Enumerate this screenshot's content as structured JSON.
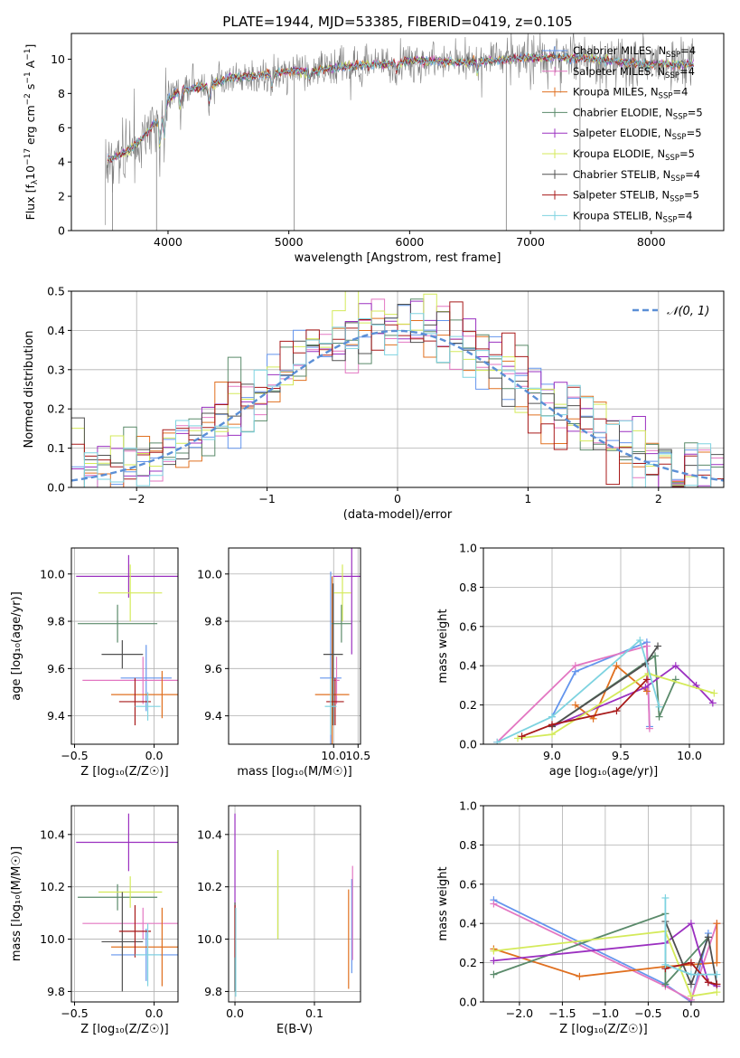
{
  "figure_title": "PLATE=1944, MJD=53385, FIBERID=0419, z=0.105",
  "colors": {
    "Chabrier MILES": "#6495ed",
    "Salpeter MILES": "#e377c2",
    "Kroupa MILES": "#e07020",
    "Chabrier ELODIE": "#5a8a6a",
    "Salpeter ELODIE": "#9b30c0",
    "Kroupa ELODIE": "#d4ea5a",
    "Chabrier STELIB": "#505050",
    "Salpeter STELIB": "#a81a1a",
    "Kroupa STELIB": "#7ed3e0",
    "data": "#7f7f7f",
    "normal": "#5b8fd6"
  },
  "chart_data": [
    {
      "id": "spectrum",
      "type": "line",
      "title": "PLATE=1944, MJD=53385, FIBERID=0419, z=0.105",
      "xlabel": "wavelength [Angstrom, rest frame]",
      "ylabel_main": "Flux [f",
      "ylabel_sub": "λ",
      "ylabel_rest": "10",
      "ylabel_exp": "−17",
      "ylabel_tail": " erg cm",
      "ylabel_exp2": "−2",
      "ylabel_tail2": " s",
      "ylabel_exp3": "−1",
      "ylabel_tail3": " A",
      "ylabel_exp4": "−1",
      "ylabel_end": "]",
      "xlim": [
        3200,
        8600
      ],
      "ylim": [
        0,
        11.5
      ],
      "xticks": [
        4000,
        5000,
        6000,
        7000,
        8000
      ],
      "yticks": [
        0,
        2,
        4,
        6,
        8,
        10
      ],
      "grid": false,
      "legend_position": "right",
      "legend": [
        {
          "name": "Chabrier MILES",
          "nssp": "4"
        },
        {
          "name": "Salpeter MILES",
          "nssp": "4"
        },
        {
          "name": "Kroupa MILES",
          "nssp": "4"
        },
        {
          "name": "Chabrier ELODIE",
          "nssp": "5"
        },
        {
          "name": "Salpeter ELODIE",
          "nssp": "5"
        },
        {
          "name": "Kroupa ELODIE",
          "nssp": "5"
        },
        {
          "name": "Chabrier STELIB",
          "nssp": "4"
        },
        {
          "name": "Salpeter STELIB",
          "nssp": "5"
        },
        {
          "name": "Kroupa STELIB",
          "nssp": "4"
        }
      ],
      "nssp_label": "N",
      "nssp_sub": "SSP",
      "continuum": [
        [
          3480,
          4.0
        ],
        [
          3600,
          4.4
        ],
        [
          3700,
          4.8
        ],
        [
          3800,
          5.5
        ],
        [
          3900,
          6.3
        ],
        [
          3960,
          6.8
        ],
        [
          4000,
          7.6
        ],
        [
          4100,
          8.2
        ],
        [
          4300,
          8.4
        ],
        [
          4500,
          8.9
        ],
        [
          4800,
          9.1
        ],
        [
          5000,
          9.3
        ],
        [
          5200,
          9.3
        ],
        [
          5500,
          9.6
        ],
        [
          5800,
          9.7
        ],
        [
          6000,
          9.9
        ],
        [
          6300,
          9.9
        ],
        [
          6500,
          9.8
        ],
        [
          6800,
          10.0
        ],
        [
          7000,
          10.1
        ],
        [
          7400,
          10.1
        ],
        [
          7800,
          9.8
        ],
        [
          8000,
          9.7
        ],
        [
          8350,
          9.7
        ]
      ]
    },
    {
      "id": "residuals",
      "type": "histogram",
      "xlabel": "(data-model)/error",
      "ylabel": "Normed distribution",
      "xlim": [
        -2.5,
        2.5
      ],
      "ylim": [
        0,
        0.5
      ],
      "xticks": [
        -2,
        -1,
        0,
        1,
        2
      ],
      "xtick_labels": [
        "−2",
        "−1",
        "0",
        "1",
        "2"
      ],
      "yticks": [
        0.0,
        0.1,
        0.2,
        0.3,
        0.4,
        0.5
      ],
      "ytick_labels": [
        "0.0",
        "0.1",
        "0.2",
        "0.3",
        "0.4",
        "0.5"
      ],
      "grid": true,
      "legend": "𝒩(0, 1)",
      "legend_position": "top-right",
      "bin_width": 0.1
    },
    {
      "id": "age-vs-Z",
      "type": "errorbar",
      "xlabel": "Z [log₁₀(Z/Z☉)]",
      "ylabel": "age  [log₁₀(age/yr)]",
      "xlim": [
        -0.52,
        0.15
      ],
      "ylim": [
        9.28,
        10.11
      ],
      "xticks": [
        -0.5,
        0.0
      ],
      "xtick_labels": [
        "−0.5",
        "0.0"
      ],
      "yticks": [
        9.4,
        9.6,
        9.8,
        10.0
      ],
      "ytick_labels": [
        "9.4",
        "9.6",
        "9.8",
        "10.0"
      ],
      "grid": true,
      "points": [
        {
          "model": "Chabrier MILES",
          "x": -0.05,
          "xerr": 0.16,
          "y": 9.56,
          "yerr": 0.14
        },
        {
          "model": "Salpeter MILES",
          "x": -0.07,
          "xerr": 0.38,
          "y": 9.55,
          "yerr": 0.1
        },
        {
          "model": "Kroupa MILES",
          "x": 0.05,
          "xerr": 0.32,
          "y": 9.49,
          "yerr": 0.1
        },
        {
          "model": "Chabrier ELODIE",
          "x": -0.23,
          "xerr": 0.25,
          "y": 9.79,
          "yerr": 0.08
        },
        {
          "model": "Salpeter ELODIE",
          "x": -0.16,
          "xerr": 0.33,
          "y": 9.99,
          "yerr": 0.09
        },
        {
          "model": "Kroupa ELODIE",
          "x": -0.15,
          "xerr": 0.2,
          "y": 9.92,
          "yerr": 0.12
        },
        {
          "model": "Chabrier STELIB",
          "x": -0.2,
          "xerr": 0.13,
          "y": 9.66,
          "yerr": 0.06
        },
        {
          "model": "Salpeter STELIB",
          "x": -0.12,
          "xerr": 0.1,
          "y": 9.46,
          "yerr": 0.1
        },
        {
          "model": "Kroupa STELIB",
          "x": -0.04,
          "xerr": 0.08,
          "y": 9.44,
          "yerr": 0.06
        }
      ]
    },
    {
      "id": "age-vs-mass",
      "type": "errorbar",
      "xlabel": "mass [log₁₀(M/M☉)]",
      "ylabel": "",
      "xlim": [
        7.85,
        10.55
      ],
      "ylim": [
        9.28,
        10.11
      ],
      "xticks": [
        7.5,
        10.0,
        10.5
      ],
      "xtick_labels": [
        "",
        "10.0",
        "10.5"
      ],
      "xticks_shown": [
        10.0,
        10.5
      ],
      "yticks": [
        9.4,
        9.6,
        9.8,
        10.0
      ],
      "ytick_labels": [
        "9.4",
        "9.6",
        "9.8",
        "10.0"
      ],
      "grid": true,
      "points": [
        {
          "model": "Chabrier MILES",
          "x": 9.94,
          "xerr": 0.22,
          "y": 9.56,
          "yerr": 0.45
        },
        {
          "model": "Salpeter MILES",
          "x": 10.06,
          "xerr": 0.06,
          "y": 9.55,
          "yerr": 0.1
        },
        {
          "model": "Kroupa MILES",
          "x": 9.97,
          "xerr": 0.35,
          "y": 9.49,
          "yerr": 0.5
        },
        {
          "model": "Chabrier ELODIE",
          "x": 10.16,
          "xerr": 0.2,
          "y": 9.79,
          "yerr": 0.08
        },
        {
          "model": "Salpeter ELODIE",
          "x": 10.37,
          "xerr": 0.38,
          "y": 9.99,
          "yerr": 0.33
        },
        {
          "model": "Kroupa ELODIE",
          "x": 10.18,
          "xerr": 0.18,
          "y": 9.92,
          "yerr": 0.12
        },
        {
          "model": "Chabrier STELIB",
          "x": 9.99,
          "xerr": 0.2,
          "y": 9.66,
          "yerr": 0.3
        },
        {
          "model": "Salpeter STELIB",
          "x": 10.03,
          "xerr": 0.18,
          "y": 9.46,
          "yerr": 0.1
        },
        {
          "model": "Kroupa STELIB",
          "x": 9.94,
          "xerr": 0.12,
          "y": 9.44,
          "yerr": 0.12
        }
      ]
    },
    {
      "id": "weight-vs-age",
      "type": "line",
      "xlabel": "age  [log₁₀(age/yr)]",
      "ylabel": "mass weight",
      "xlim": [
        8.5,
        10.25
      ],
      "ylim": [
        0.0,
        1.0
      ],
      "xticks": [
        9.0,
        9.5,
        10.0
      ],
      "xtick_labels": [
        "9.0",
        "9.5",
        "10.0"
      ],
      "yticks": [
        0.0,
        0.2,
        0.4,
        0.6,
        0.8,
        1.0
      ],
      "ytick_labels": [
        "0.0",
        "0.2",
        "0.4",
        "0.6",
        "0.8",
        "1.0"
      ],
      "grid": true,
      "series": [
        {
          "model": "Chabrier MILES",
          "x": [
            9.0,
            9.17,
            9.69,
            9.71
          ],
          "y": [
            0.14,
            0.37,
            0.52,
            0.09
          ]
        },
        {
          "model": "Salpeter MILES",
          "x": [
            8.6,
            9.17,
            9.69,
            9.71
          ],
          "y": [
            0.01,
            0.4,
            0.5,
            0.08
          ]
        },
        {
          "model": "Kroupa MILES",
          "x": [
            9.17,
            9.3,
            9.47,
            9.69
          ],
          "y": [
            0.2,
            0.13,
            0.4,
            0.27
          ]
        },
        {
          "model": "Chabrier ELODIE",
          "x": [
            9.0,
            9.75,
            9.78,
            9.9
          ],
          "y": [
            0.09,
            0.45,
            0.14,
            0.33
          ]
        },
        {
          "model": "Salpeter ELODIE",
          "x": [
            9.0,
            9.68,
            9.9,
            10.05,
            10.17
          ],
          "y": [
            0.09,
            0.29,
            0.4,
            0.3,
            0.21
          ]
        },
        {
          "model": "Kroupa ELODIE",
          "x": [
            8.75,
            9.0,
            9.7,
            10.18
          ],
          "y": [
            0.03,
            0.05,
            0.36,
            0.26
          ]
        },
        {
          "model": "Chabrier STELIB",
          "x": [
            9.0,
            9.68,
            9.77
          ],
          "y": [
            0.09,
            0.41,
            0.5
          ]
        },
        {
          "model": "Salpeter STELIB",
          "x": [
            8.78,
            9.0,
            9.47,
            9.69
          ],
          "y": [
            0.04,
            0.1,
            0.17,
            0.33
          ]
        },
        {
          "model": "Kroupa STELIB",
          "x": [
            8.6,
            9.0,
            9.64,
            9.78
          ],
          "y": [
            0.01,
            0.14,
            0.53,
            0.19
          ]
        }
      ]
    },
    {
      "id": "mass-vs-Z",
      "type": "errorbar",
      "xlabel": "Z [log₁₀(Z/Z☉)]",
      "ylabel": "mass [log₁₀(M/M☉)]",
      "xlim": [
        -0.52,
        0.15
      ],
      "ylim": [
        9.76,
        10.51
      ],
      "xticks": [
        -0.5,
        0.0
      ],
      "xtick_labels": [
        "−0.5",
        "0.0"
      ],
      "yticks": [
        9.8,
        10.0,
        10.2,
        10.4
      ],
      "ytick_labels": [
        "9.8",
        "10.0",
        "10.2",
        "10.4"
      ],
      "grid": true,
      "points": [
        {
          "model": "Chabrier MILES",
          "x": -0.05,
          "xerr": 0.22,
          "y": 9.94,
          "yerr": 0.1
        },
        {
          "model": "Salpeter MILES",
          "x": -0.07,
          "xerr": 0.38,
          "y": 10.06,
          "yerr": 0.06
        },
        {
          "model": "Kroupa MILES",
          "x": 0.05,
          "xerr": 0.32,
          "y": 9.97,
          "yerr": 0.15
        },
        {
          "model": "Chabrier ELODIE",
          "x": -0.23,
          "xerr": 0.25,
          "y": 10.16,
          "yerr": 0.05
        },
        {
          "model": "Salpeter ELODIE",
          "x": -0.16,
          "xerr": 0.33,
          "y": 10.37,
          "yerr": 0.11
        },
        {
          "model": "Kroupa ELODIE",
          "x": -0.15,
          "xerr": 0.2,
          "y": 10.18,
          "yerr": 0.06
        },
        {
          "model": "Chabrier STELIB",
          "x": -0.2,
          "xerr": 0.13,
          "y": 9.99,
          "yerr": 0.19
        },
        {
          "model": "Salpeter STELIB",
          "x": -0.12,
          "xerr": 0.1,
          "y": 10.03,
          "yerr": 0.1
        },
        {
          "model": "Kroupa STELIB",
          "x": -0.04,
          "xerr": 0.08,
          "y": 9.94,
          "yerr": 0.12
        }
      ]
    },
    {
      "id": "mass-vs-ebv",
      "type": "errorbar",
      "xlabel": "E(B-V)",
      "ylabel": "",
      "xlim": [
        -0.008,
        0.158
      ],
      "ylim": [
        9.76,
        10.51
      ],
      "xticks": [
        0.0,
        0.1
      ],
      "xtick_labels": [
        "0.0",
        "0.1"
      ],
      "yticks": [
        9.8,
        10.0,
        10.2,
        10.4
      ],
      "ytick_labels": [
        "9.8",
        "10.0",
        "10.2",
        "10.4"
      ],
      "grid": true,
      "points": [
        {
          "model": "Chabrier MILES",
          "x": 0.147,
          "xerr": 0.0,
          "y": 10.05,
          "yerr": 0.18
        },
        {
          "model": "Salpeter MILES",
          "x": 0.148,
          "xerr": 0.0,
          "y": 10.1,
          "yerr": 0.18
        },
        {
          "model": "Kroupa MILES",
          "x": 0.143,
          "xerr": 0.0,
          "y": 10.0,
          "yerr": 0.19
        },
        {
          "model": "Chabrier ELODIE",
          "x": 0.054,
          "xerr": 0.0,
          "y": 10.17,
          "yerr": 0.17
        },
        {
          "model": "Salpeter ELODIE",
          "x": 0.0,
          "xerr": 0.0,
          "y": 10.3,
          "yerr": 0.18
        },
        {
          "model": "Kroupa ELODIE",
          "x": 0.054,
          "xerr": 0.0,
          "y": 10.17,
          "yerr": 0.17
        },
        {
          "model": "Chabrier STELIB",
          "x": 0.0,
          "xerr": 0.0,
          "y": 9.97,
          "yerr": 0.17
        },
        {
          "model": "Salpeter STELIB",
          "x": 0.0,
          "xerr": 0.0,
          "y": 10.03,
          "yerr": 0.1
        },
        {
          "model": "Kroupa STELIB",
          "x": 0.001,
          "xerr": 0.0,
          "y": 9.95,
          "yerr": 0.17
        }
      ]
    },
    {
      "id": "weight-vs-Z",
      "type": "line",
      "xlabel": "Z [log₁₀(Z/Z☉)]",
      "ylabel": "mass weight",
      "xlim": [
        -2.42,
        0.38
      ],
      "ylim": [
        0.0,
        1.0
      ],
      "xticks": [
        -2.0,
        -1.5,
        -1.0,
        -0.5,
        0.0
      ],
      "xtick_labels": [
        "−2.0",
        "−1.5",
        "−1.0",
        "−0.5",
        "0.0"
      ],
      "yticks": [
        0.0,
        0.2,
        0.4,
        0.6,
        0.8,
        1.0
      ],
      "ytick_labels": [
        "0.0",
        "0.2",
        "0.4",
        "0.6",
        "0.8",
        "1.0"
      ],
      "grid": true,
      "series": [
        {
          "model": "Chabrier MILES",
          "x": [
            -2.3,
            -0.3,
            0.0,
            0.2
          ],
          "y": [
            0.52,
            0.09,
            0.0,
            0.35
          ]
        },
        {
          "model": "Salpeter MILES",
          "x": [
            -2.3,
            -0.3,
            0.0,
            0.3
          ],
          "y": [
            0.5,
            0.08,
            0.01,
            0.4
          ]
        },
        {
          "model": "Kroupa MILES",
          "x": [
            -2.3,
            -1.3,
            -0.3,
            0.3,
            0.3
          ],
          "y": [
            0.27,
            0.13,
            0.18,
            0.2,
            0.4
          ]
        },
        {
          "model": "Chabrier ELODIE",
          "x": [
            -2.3,
            -0.3,
            -0.3,
            0.2
          ],
          "y": [
            0.14,
            0.45,
            0.09,
            0.33
          ]
        },
        {
          "model": "Salpeter ELODIE",
          "x": [
            -2.3,
            -0.3,
            0.0,
            0.2,
            0.3
          ],
          "y": [
            0.21,
            0.3,
            0.4,
            0.1,
            0.08
          ]
        },
        {
          "model": "Kroupa ELODIE",
          "x": [
            -2.3,
            -0.3,
            0.0,
            0.3
          ],
          "y": [
            0.26,
            0.36,
            0.03,
            0.05
          ]
        },
        {
          "model": "Chabrier STELIB",
          "x": [
            -0.3,
            0.0,
            0.2,
            0.3
          ],
          "y": [
            0.41,
            0.09,
            0.33,
            0.09
          ]
        },
        {
          "model": "Salpeter STELIB",
          "x": [
            -0.3,
            0.0,
            0.2,
            0.3
          ],
          "y": [
            0.17,
            0.2,
            0.1,
            0.09
          ]
        },
        {
          "model": "Kroupa STELIB",
          "x": [
            -0.3,
            -0.3,
            0.0,
            0.3
          ],
          "y": [
            0.53,
            0.19,
            0.14,
            0.14
          ]
        }
      ]
    }
  ]
}
